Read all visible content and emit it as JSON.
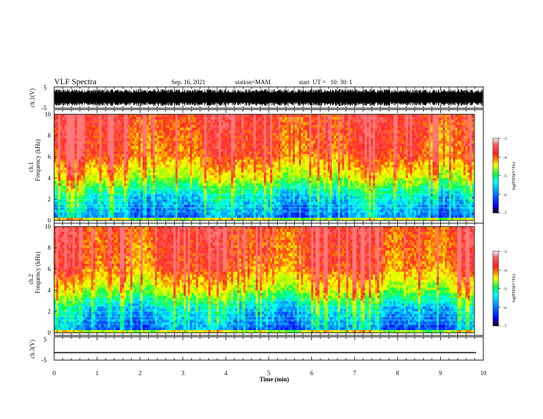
{
  "header": {
    "title": "VLF Spectra",
    "date": "Sep. 16, 2021",
    "station": "station=MAM",
    "start": "start  UT =   10: 30: 1"
  },
  "chart_data": [
    {
      "type": "line",
      "name": "ch1-waveform",
      "ylabel": "ch.1(V)",
      "ylim": [
        -5,
        5
      ],
      "yticks": [
        "5",
        "-5"
      ],
      "description_level": "dense black oscillation saturating between about -4 and 4 V"
    },
    {
      "type": "heatmap",
      "name": "ch1-spectrogram",
      "ylabel_top": "ch.1",
      "ylabel": "Frequency (kHz)",
      "ylim": [
        0,
        10
      ],
      "yticks": [
        "0",
        "2",
        "4",
        "6",
        "8",
        "10"
      ],
      "colorbar": {
        "label": "log(PSD)(V²/Hz)",
        "range": [
          -7,
          -3
        ],
        "ticks": [
          "-3",
          "-4",
          "-5",
          "-6",
          "-7"
        ]
      }
    },
    {
      "type": "heatmap",
      "name": "ch2-spectrogram",
      "ylabel_top": "ch.2",
      "ylabel": "Frequency (kHz)",
      "ylim": [
        0,
        10
      ],
      "yticks": [
        "0",
        "2",
        "4",
        "6",
        "8",
        "10"
      ],
      "colorbar": {
        "label": "log(PSD)(V²/Hz)",
        "range": [
          -7,
          -3
        ],
        "ticks": [
          "-3",
          "-4",
          "-5",
          "-6",
          "-7"
        ]
      }
    },
    {
      "type": "line",
      "name": "ch3-waveform",
      "ylabel": "ch.3(V)",
      "ylim": [
        -5,
        5
      ],
      "yticks": [
        "5",
        "-5"
      ],
      "x": [
        0,
        9.83
      ],
      "y": [
        -2,
        -2
      ]
    }
  ],
  "x_axis": {
    "label": "Time (min)",
    "xlim": [
      0,
      10
    ],
    "ticks": [
      "0",
      "1",
      "2",
      "3",
      "4",
      "5",
      "6",
      "7",
      "8",
      "9",
      "10"
    ]
  },
  "colors": {
    "high": "#ff2020",
    "mid_high": "#ffff00",
    "mid": "#00ff40",
    "mid_low": "#00ffff",
    "low": "#0000ff",
    "floor": "#000000"
  }
}
